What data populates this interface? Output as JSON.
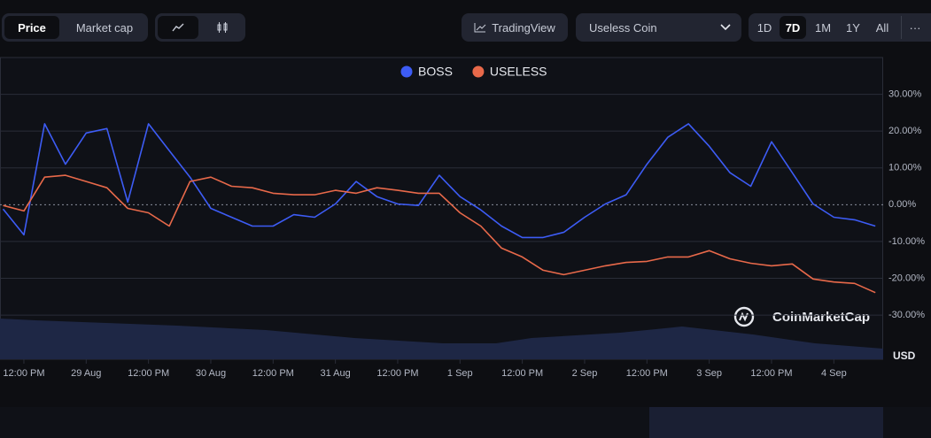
{
  "ui": {
    "tabs": [
      "Price",
      "Market cap"
    ],
    "tradingview": "TradingView",
    "coin_select": "Useless Coin",
    "ranges": [
      "1D",
      "7D",
      "1M",
      "1Y",
      "All"
    ],
    "more": "···",
    "watermark": "CoinMarketCap",
    "currency": "USD"
  },
  "chart_data": {
    "type": "line",
    "x": [
      -4,
      0,
      4,
      8,
      12,
      16,
      20,
      24,
      28,
      32,
      36,
      40,
      44,
      48,
      52,
      56,
      60,
      64,
      68,
      72,
      76,
      80,
      84,
      88,
      92,
      96,
      100,
      104,
      108,
      112,
      116,
      120,
      124,
      128,
      132,
      136,
      140,
      144,
      148,
      152,
      156,
      160,
      164
    ],
    "series": [
      {
        "name": "BOSS",
        "color": "#3d5cf5",
        "values": [
          -1.2,
          -8.2,
          22,
          11,
          19.5,
          20.7,
          0.7,
          22,
          14.7,
          7.5,
          -1,
          -3.4,
          -5.8,
          -5.8,
          -2.7,
          -3.4,
          0.2,
          6.3,
          2.2,
          0.2,
          -0.2,
          8,
          2.2,
          -1.4,
          -5.8,
          -8.9,
          -8.9,
          -7.5,
          -3.4,
          0.2,
          2.7,
          11,
          18.3,
          22,
          15.9,
          8.7,
          5,
          17.1,
          8.7,
          0.2,
          -3.4,
          -4.1,
          -5.8
        ]
      },
      {
        "name": "USELESS",
        "color": "#e8694a",
        "values": [
          -0.2,
          -1.7,
          7.5,
          8,
          6.3,
          4.6,
          -1,
          -2.2,
          -5.8,
          6.3,
          7.5,
          5,
          4.6,
          3.1,
          2.7,
          2.7,
          3.9,
          3.1,
          4.6,
          3.9,
          3.1,
          3.1,
          -2.2,
          -5.8,
          -11.8,
          -14.2,
          -17.8,
          -19,
          -17.8,
          -16.6,
          -15.7,
          -15.4,
          -14.2,
          -14.2,
          -12.5,
          -14.7,
          -15.9,
          -16.6,
          -16.1,
          -20.2,
          -21,
          -21.4,
          -23.9
        ]
      }
    ],
    "xlim": [
      -4.6,
      165.5
    ],
    "xticks": [
      {
        "value": 0,
        "label": "12:00 PM"
      },
      {
        "value": 12,
        "label": "29 Aug"
      },
      {
        "value": 24,
        "label": "12:00 PM"
      },
      {
        "value": 36,
        "label": "30 Aug"
      },
      {
        "value": 48,
        "label": "12:00 PM"
      },
      {
        "value": 60,
        "label": "31 Aug"
      },
      {
        "value": 72,
        "label": "12:00 PM"
      },
      {
        "value": 84,
        "label": "1 Sep"
      },
      {
        "value": 96,
        "label": "12:00 PM"
      },
      {
        "value": 108,
        "label": "2 Sep"
      },
      {
        "value": 120,
        "label": "12:00 PM"
      },
      {
        "value": 132,
        "label": "3 Sep"
      },
      {
        "value": 144,
        "label": "12:00 PM"
      },
      {
        "value": 156,
        "label": "4 Sep"
      }
    ],
    "ylim": [
      -42,
      40
    ],
    "yticks": [
      {
        "value": 30,
        "label": "30.00%"
      },
      {
        "value": 20,
        "label": "20.00%"
      },
      {
        "value": 10,
        "label": "10.00%"
      },
      {
        "value": 0,
        "label": "0.00%"
      },
      {
        "value": -10,
        "label": "-10.00%"
      },
      {
        "value": -20,
        "label": "-20.00%"
      },
      {
        "value": -30,
        "label": "-30.00%"
      }
    ],
    "grid": true,
    "legend": "top"
  }
}
